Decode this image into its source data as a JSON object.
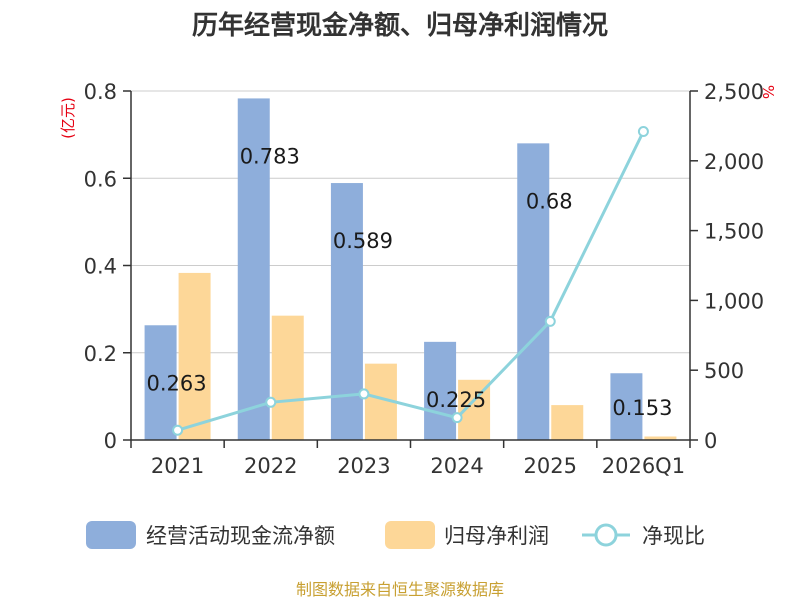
{
  "title": "历年经营现金净额、归母净利润情况",
  "left_unit": "(亿元)",
  "right_unit": "%",
  "source": "制图数据来自恒生聚源数据库",
  "colors": {
    "cash_flow": "#8eaedb",
    "net_profit": "#fdd798",
    "ratio": "#8dd3dc",
    "grid": "#cccccc",
    "axis": "#333333",
    "unit": "#e60012"
  },
  "chart_data": {
    "type": "bar",
    "title": "历年经营现金净额、归母净利润情况",
    "categories": [
      "2021",
      "2022",
      "2023",
      "2024",
      "2025",
      "2026Q1"
    ],
    "ylabel": "(亿元)",
    "ylabel_right": "%",
    "ylim": [
      0,
      0.8
    ],
    "yticks": [
      "0",
      "0.2",
      "0.4",
      "0.6",
      "0.8"
    ],
    "ylim_right": [
      0,
      2500
    ],
    "yticks_right": [
      "0",
      "500",
      "1,000",
      "1,500",
      "2,000",
      "2,500"
    ],
    "grid": true,
    "legend_position": "bottom",
    "series": [
      {
        "name": "经营活动现金流净额",
        "type": "bar",
        "axis": "left",
        "values": [
          0.263,
          0.783,
          0.589,
          0.225,
          0.68,
          0.153
        ],
        "labels": [
          "0.263",
          "0.783",
          "0.589",
          "0.225",
          "0.68",
          "0.153"
        ]
      },
      {
        "name": "归母净利润",
        "type": "bar",
        "axis": "left",
        "values": [
          0.383,
          0.285,
          0.175,
          0.138,
          0.08,
          0.008
        ]
      },
      {
        "name": "净现比",
        "type": "line",
        "axis": "right",
        "values": [
          70,
          270,
          330,
          160,
          850,
          2210
        ]
      }
    ]
  }
}
